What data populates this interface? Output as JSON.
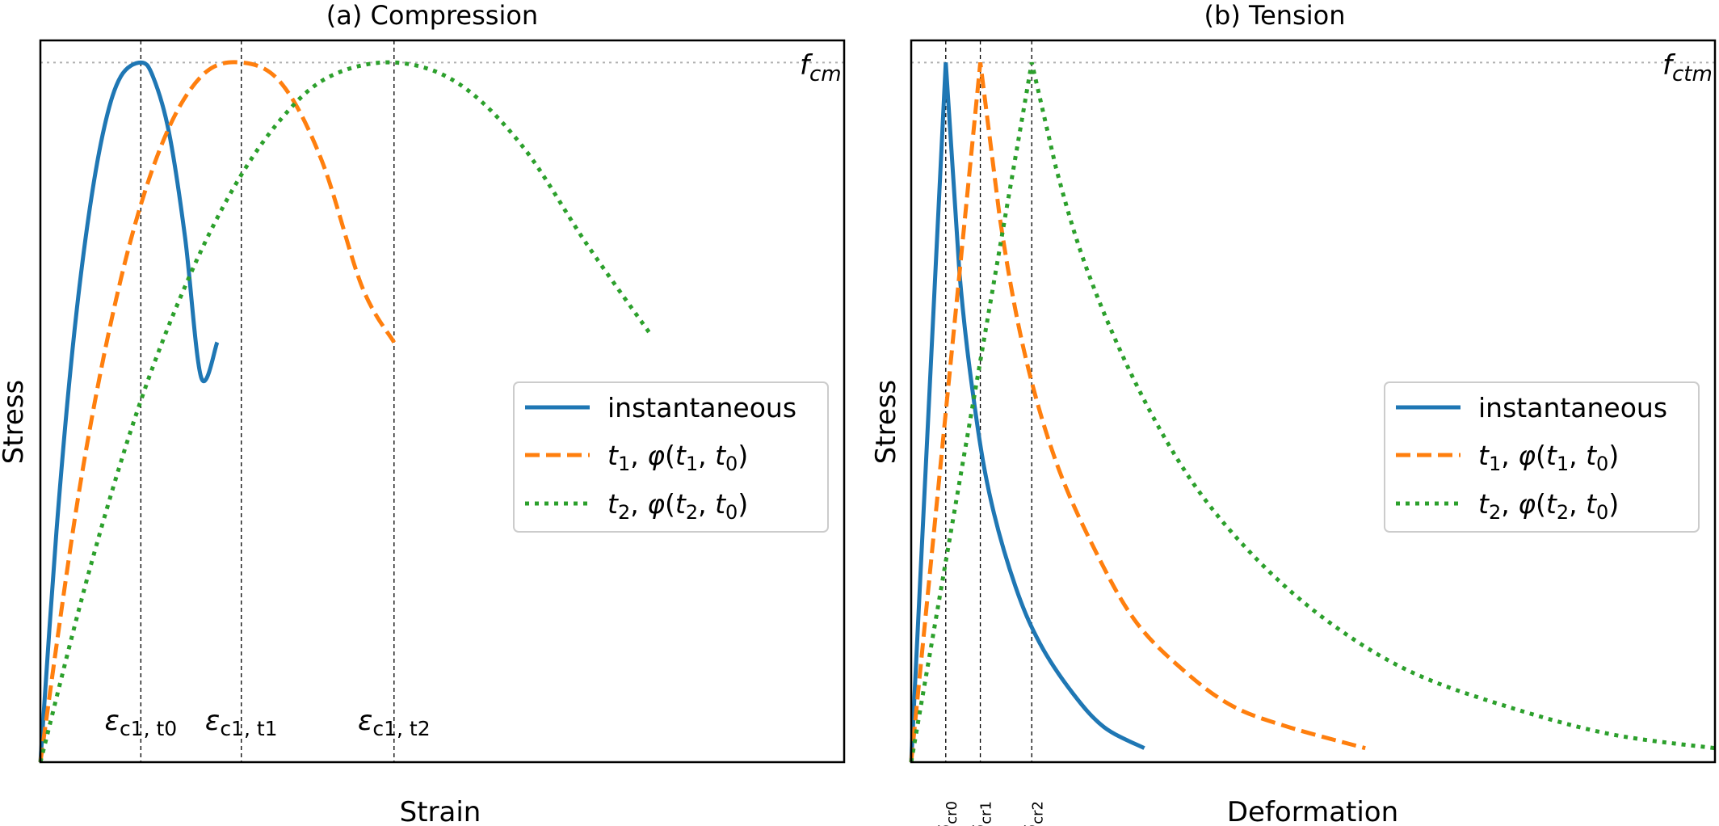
{
  "chart_data": [
    {
      "type": "line",
      "title": "(a) Compression",
      "xlabel": "Strain",
      "ylabel": "Stress",
      "peak_label": {
        "main": "f",
        "sub": "cm"
      },
      "peak_stress": 1.0,
      "xlim": [
        0,
        1.0
      ],
      "ylim": [
        0,
        1.02
      ],
      "ticks_shown": false,
      "grid": false,
      "legend": "center-right",
      "strain_markers": [
        {
          "main": "ε",
          "sub": "c1, t0",
          "x": 0.125
        },
        {
          "main": "ε",
          "sub": "c1, t1",
          "x": 0.25
        },
        {
          "main": "ε",
          "sub": "c1, t2",
          "x": 0.44
        }
      ],
      "series": [
        {
          "name": "instantaneous",
          "color": "#1f77b4",
          "style": "solid",
          "x": [
            0,
            0.02,
            0.04,
            0.06,
            0.08,
            0.1,
            0.125,
            0.14,
            0.16,
            0.18,
            0.2,
            0.22
          ],
          "y": [
            0.0,
            0.33,
            0.59,
            0.78,
            0.91,
            0.98,
            1.0,
            0.98,
            0.9,
            0.75,
            0.55,
            0.6
          ]
        },
        {
          "name": "t1, φ(t1, t0)",
          "color": "#ff7f0e",
          "style": "dashed",
          "x": [
            0,
            0.05,
            0.1,
            0.15,
            0.2,
            0.25,
            0.3,
            0.35,
            0.4,
            0.44
          ],
          "y": [
            0.0,
            0.4,
            0.69,
            0.88,
            0.98,
            1.0,
            0.97,
            0.86,
            0.68,
            0.6
          ]
        },
        {
          "name": "t2, φ(t2, t0)",
          "color": "#2ca02c",
          "style": "dotted",
          "x": [
            0,
            0.06,
            0.12,
            0.18,
            0.24,
            0.3,
            0.36,
            0.44,
            0.52,
            0.6,
            0.68,
            0.76
          ],
          "y": [
            0.0,
            0.27,
            0.5,
            0.68,
            0.82,
            0.92,
            0.98,
            1.0,
            0.97,
            0.88,
            0.74,
            0.61
          ]
        }
      ]
    },
    {
      "type": "line",
      "title": "(b) Tension",
      "xlabel": "Deformation",
      "ylabel": "Stress",
      "peak_label": {
        "main": "f",
        "sub": "ctm"
      },
      "peak_stress": 1.0,
      "xlim": [
        0,
        1.0
      ],
      "ylim": [
        0,
        1.02
      ],
      "ticks_shown": false,
      "grid": false,
      "legend": "center-right",
      "crack_markers": [
        {
          "main": "δ",
          "sub": "cr0",
          "x": 0.043
        },
        {
          "main": "δ",
          "sub": "cr1",
          "x": 0.086
        },
        {
          "main": "δ",
          "sub": "cr2",
          "x": 0.15
        }
      ],
      "series": [
        {
          "name": "instantaneous",
          "color": "#1f77b4",
          "style": "solid",
          "x": [
            0,
            0.043,
            0.06,
            0.08,
            0.1,
            0.13,
            0.16,
            0.2,
            0.24,
            0.29
          ],
          "y": [
            0.0,
            1.0,
            0.7,
            0.5,
            0.37,
            0.25,
            0.17,
            0.1,
            0.05,
            0.02
          ]
        },
        {
          "name": "t1, φ(t1, t0)",
          "color": "#ff7f0e",
          "style": "dashed",
          "x": [
            0,
            0.086,
            0.11,
            0.14,
            0.18,
            0.23,
            0.28,
            0.34,
            0.4,
            0.47,
            0.565
          ],
          "y": [
            0.0,
            1.0,
            0.78,
            0.59,
            0.43,
            0.3,
            0.2,
            0.13,
            0.08,
            0.05,
            0.02
          ]
        },
        {
          "name": "t2, φ(t2, t0)",
          "color": "#2ca02c",
          "style": "dotted",
          "x": [
            0,
            0.15,
            0.18,
            0.22,
            0.28,
            0.35,
            0.43,
            0.52,
            0.62,
            0.74,
            0.87,
            1.0
          ],
          "y": [
            0.0,
            1.0,
            0.85,
            0.7,
            0.54,
            0.4,
            0.29,
            0.2,
            0.13,
            0.08,
            0.04,
            0.02
          ]
        }
      ]
    }
  ]
}
